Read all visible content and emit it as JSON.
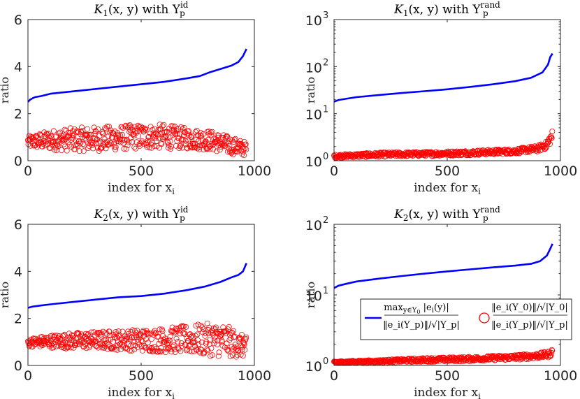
{
  "chart_data": [
    {
      "type": "line+scatter",
      "title": "K₁(x, y) with Y_p^id",
      "title_main": "K",
      "title_sub": "1",
      "title_mid": "(x, y) with Y",
      "title_sup": "id",
      "title_psub": "p",
      "xlabel": "index for x_i",
      "xlabel_main": "index for x",
      "xlabel_sub": "i",
      "ylabel": "ratio",
      "yscale": "linear",
      "xlim": [
        0,
        1000
      ],
      "ylim": [
        0,
        6
      ],
      "xticks": [
        "0",
        "500",
        "1000"
      ],
      "yticks": [
        "0",
        "2",
        "4",
        "6"
      ],
      "series": [
        {
          "name": "max_{y∈Y0} |e_i(y)| / (||e_i(Y_p)|| / sqrt(|Y_p|))",
          "style": "line",
          "color": "#0000ff",
          "x": [
            0,
            10,
            30,
            60,
            100,
            200,
            300,
            400,
            500,
            600,
            700,
            760,
            800,
            850,
            900,
            930,
            950,
            965
          ],
          "y": [
            2.5,
            2.6,
            2.7,
            2.75,
            2.85,
            2.95,
            3.05,
            3.15,
            3.25,
            3.35,
            3.5,
            3.6,
            3.75,
            3.9,
            4.05,
            4.2,
            4.45,
            4.75
          ]
        },
        {
          "name": "(||e_i(Y0)|| / sqrt(|Y0|)) / (||e_i(Y_p)|| / sqrt(|Y_p|))",
          "style": "scatter",
          "color": "#ff0000",
          "n": 965,
          "envelope_x": [
            0,
            100,
            200,
            300,
            400,
            500,
            600,
            700,
            800,
            870,
            965
          ],
          "envelope_lo": [
            0.55,
            0.45,
            0.4,
            0.4,
            0.45,
            0.5,
            0.5,
            0.5,
            0.45,
            0.3,
            0.2
          ],
          "envelope_hi": [
            1.05,
            1.3,
            1.4,
            1.45,
            1.5,
            1.55,
            1.55,
            1.4,
            1.3,
            1.1,
            0.8
          ]
        }
      ]
    },
    {
      "type": "line+scatter",
      "title": "K₁(x, y) with Y_p^rand",
      "title_main": "K",
      "title_sub": "1",
      "title_mid": "(x, y) with Y",
      "title_sup": "rand",
      "title_psub": "p",
      "xlabel": "index for x_i",
      "xlabel_main": "index for x",
      "xlabel_sub": "i",
      "ylabel": "ratio",
      "yscale": "log",
      "xlim": [
        0,
        1000
      ],
      "ylim": [
        1,
        1000
      ],
      "xticks": [
        "0",
        "500",
        "1000"
      ],
      "yticks": [
        "10",
        "10",
        "10",
        "10"
      ],
      "ytick_exps": [
        "0",
        "1",
        "2",
        "3"
      ],
      "series": [
        {
          "name": "max_{y∈Y0} |e_i(y)| / (||e_i(Y_p)|| / sqrt(|Y_p|))",
          "style": "line",
          "color": "#0000ff",
          "x": [
            0,
            20,
            60,
            100,
            200,
            300,
            400,
            500,
            600,
            700,
            800,
            870,
            920,
            945,
            955,
            965
          ],
          "y": [
            18,
            19.5,
            21,
            22.5,
            25,
            27.5,
            30,
            33,
            37,
            42,
            49,
            58,
            75,
            110,
            160,
            190
          ]
        },
        {
          "name": "(||e_i(Y0)|| / sqrt(|Y0|)) / (||e_i(Y_p)|| / sqrt(|Y_p|))",
          "style": "scatter",
          "color": "#ff0000",
          "n": 965,
          "envelope_x": [
            0,
            200,
            400,
            600,
            800,
            900,
            940,
            965
          ],
          "envelope_lo": [
            1.15,
            1.2,
            1.25,
            1.3,
            1.4,
            1.55,
            1.8,
            2.5
          ],
          "envelope_hi": [
            1.35,
            1.5,
            1.55,
            1.65,
            1.8,
            2.1,
            2.6,
            4.5
          ]
        }
      ]
    },
    {
      "type": "line+scatter",
      "title": "K₂(x, y) with Y_p^id",
      "title_main": "K",
      "title_sub": "2",
      "title_mid": "(x, y) with Y",
      "title_sup": "id",
      "title_psub": "p",
      "xlabel": "index for x_i",
      "xlabel_main": "index for x",
      "xlabel_sub": "i",
      "ylabel": "ratio",
      "yscale": "linear",
      "xlim": [
        0,
        1000
      ],
      "ylim": [
        0,
        6
      ],
      "xticks": [
        "0",
        "500",
        "1000"
      ],
      "yticks": [
        "0",
        "2",
        "4",
        "6"
      ],
      "series": [
        {
          "name": "max_{y∈Y0} |e_i(y)| / (||e_i(Y_p)|| / sqrt(|Y_p|))",
          "style": "line",
          "color": "#0000ff",
          "x": [
            0,
            20,
            60,
            100,
            200,
            300,
            400,
            500,
            600,
            700,
            780,
            850,
            900,
            930,
            950,
            965
          ],
          "y": [
            2.45,
            2.5,
            2.55,
            2.6,
            2.7,
            2.8,
            2.9,
            2.95,
            3.05,
            3.2,
            3.35,
            3.55,
            3.75,
            3.85,
            4.0,
            4.35
          ]
        },
        {
          "name": "(||e_i(Y0)|| / sqrt(|Y0|)) / (||e_i(Y_p)|| / sqrt(|Y_p|))",
          "style": "scatter",
          "color": "#ff0000",
          "n": 965,
          "envelope_x": [
            0,
            100,
            200,
            300,
            400,
            500,
            600,
            700,
            800,
            870,
            965
          ],
          "envelope_lo": [
            0.8,
            0.75,
            0.7,
            0.7,
            0.65,
            0.6,
            0.55,
            0.5,
            0.4,
            0.35,
            0.35
          ],
          "envelope_hi": [
            1.15,
            1.3,
            1.4,
            1.45,
            1.5,
            1.55,
            1.6,
            1.7,
            1.8,
            1.75,
            1.2
          ]
        }
      ]
    },
    {
      "type": "line+scatter",
      "title": "K₂(x, y) with Y_p^rand",
      "title_main": "K",
      "title_sub": "2",
      "title_mid": "(x, y) with Y",
      "title_sup": "rand",
      "title_psub": "p",
      "xlabel": "index for x_i",
      "xlabel_main": "index for x",
      "xlabel_sub": "i",
      "ylabel": "ratio",
      "yscale": "log",
      "xlim": [
        0,
        1000
      ],
      "ylim": [
        1,
        100
      ],
      "xticks": [
        "0",
        "500",
        "1000"
      ],
      "yticks": [
        "10",
        "10",
        "10"
      ],
      "ytick_exps": [
        "0",
        "1",
        "2"
      ],
      "series": [
        {
          "name": "max_{y∈Y0} |e_i(y)| / (||e_i(Y_p)|| / sqrt(|Y_p|))",
          "style": "line",
          "color": "#0000ff",
          "x": [
            0,
            20,
            60,
            100,
            200,
            300,
            400,
            500,
            600,
            700,
            800,
            870,
            910,
            940,
            955,
            965
          ],
          "y": [
            12.5,
            13.5,
            14.5,
            15.5,
            17,
            18.5,
            20,
            21.5,
            23,
            24.5,
            26,
            27.5,
            30,
            36,
            45,
            53
          ]
        },
        {
          "name": "(||e_i(Y0)|| / sqrt(|Y0|)) / (||e_i(Y_p)|| / sqrt(|Y_p|))",
          "style": "scatter",
          "color": "#ff0000",
          "n": 965,
          "envelope_x": [
            0,
            200,
            400,
            600,
            800,
            900,
            950,
            965
          ],
          "envelope_lo": [
            1.08,
            1.1,
            1.12,
            1.15,
            1.2,
            1.25,
            1.3,
            1.4
          ],
          "envelope_hi": [
            1.15,
            1.2,
            1.28,
            1.33,
            1.42,
            1.5,
            1.6,
            1.75
          ]
        }
      ]
    }
  ],
  "legend": {
    "placement": "lower-right panel, center-right",
    "line_label": "max_{y∈Y0} |e_i(y)| / (||e_i(Y_p)|| / √|Y_p|)",
    "line_num_pre": "max",
    "line_num_sub": "y∈Y",
    "line_num_sub0": "0",
    "line_num_post": " |e",
    "line_num_i": "i",
    "line_num_end": "(y)|",
    "line_den": "‖e_i(Y_p)‖/√|Y_p|",
    "marker_label": "(‖e_i(Y0)‖/√|Y0|) / (‖e_i(Y_p)‖/√|Y_p|)",
    "marker_num": "‖e_i(Y_0)‖/√|Y_0|",
    "marker_den": "‖e_i(Y_p)‖/√|Y_p|"
  }
}
